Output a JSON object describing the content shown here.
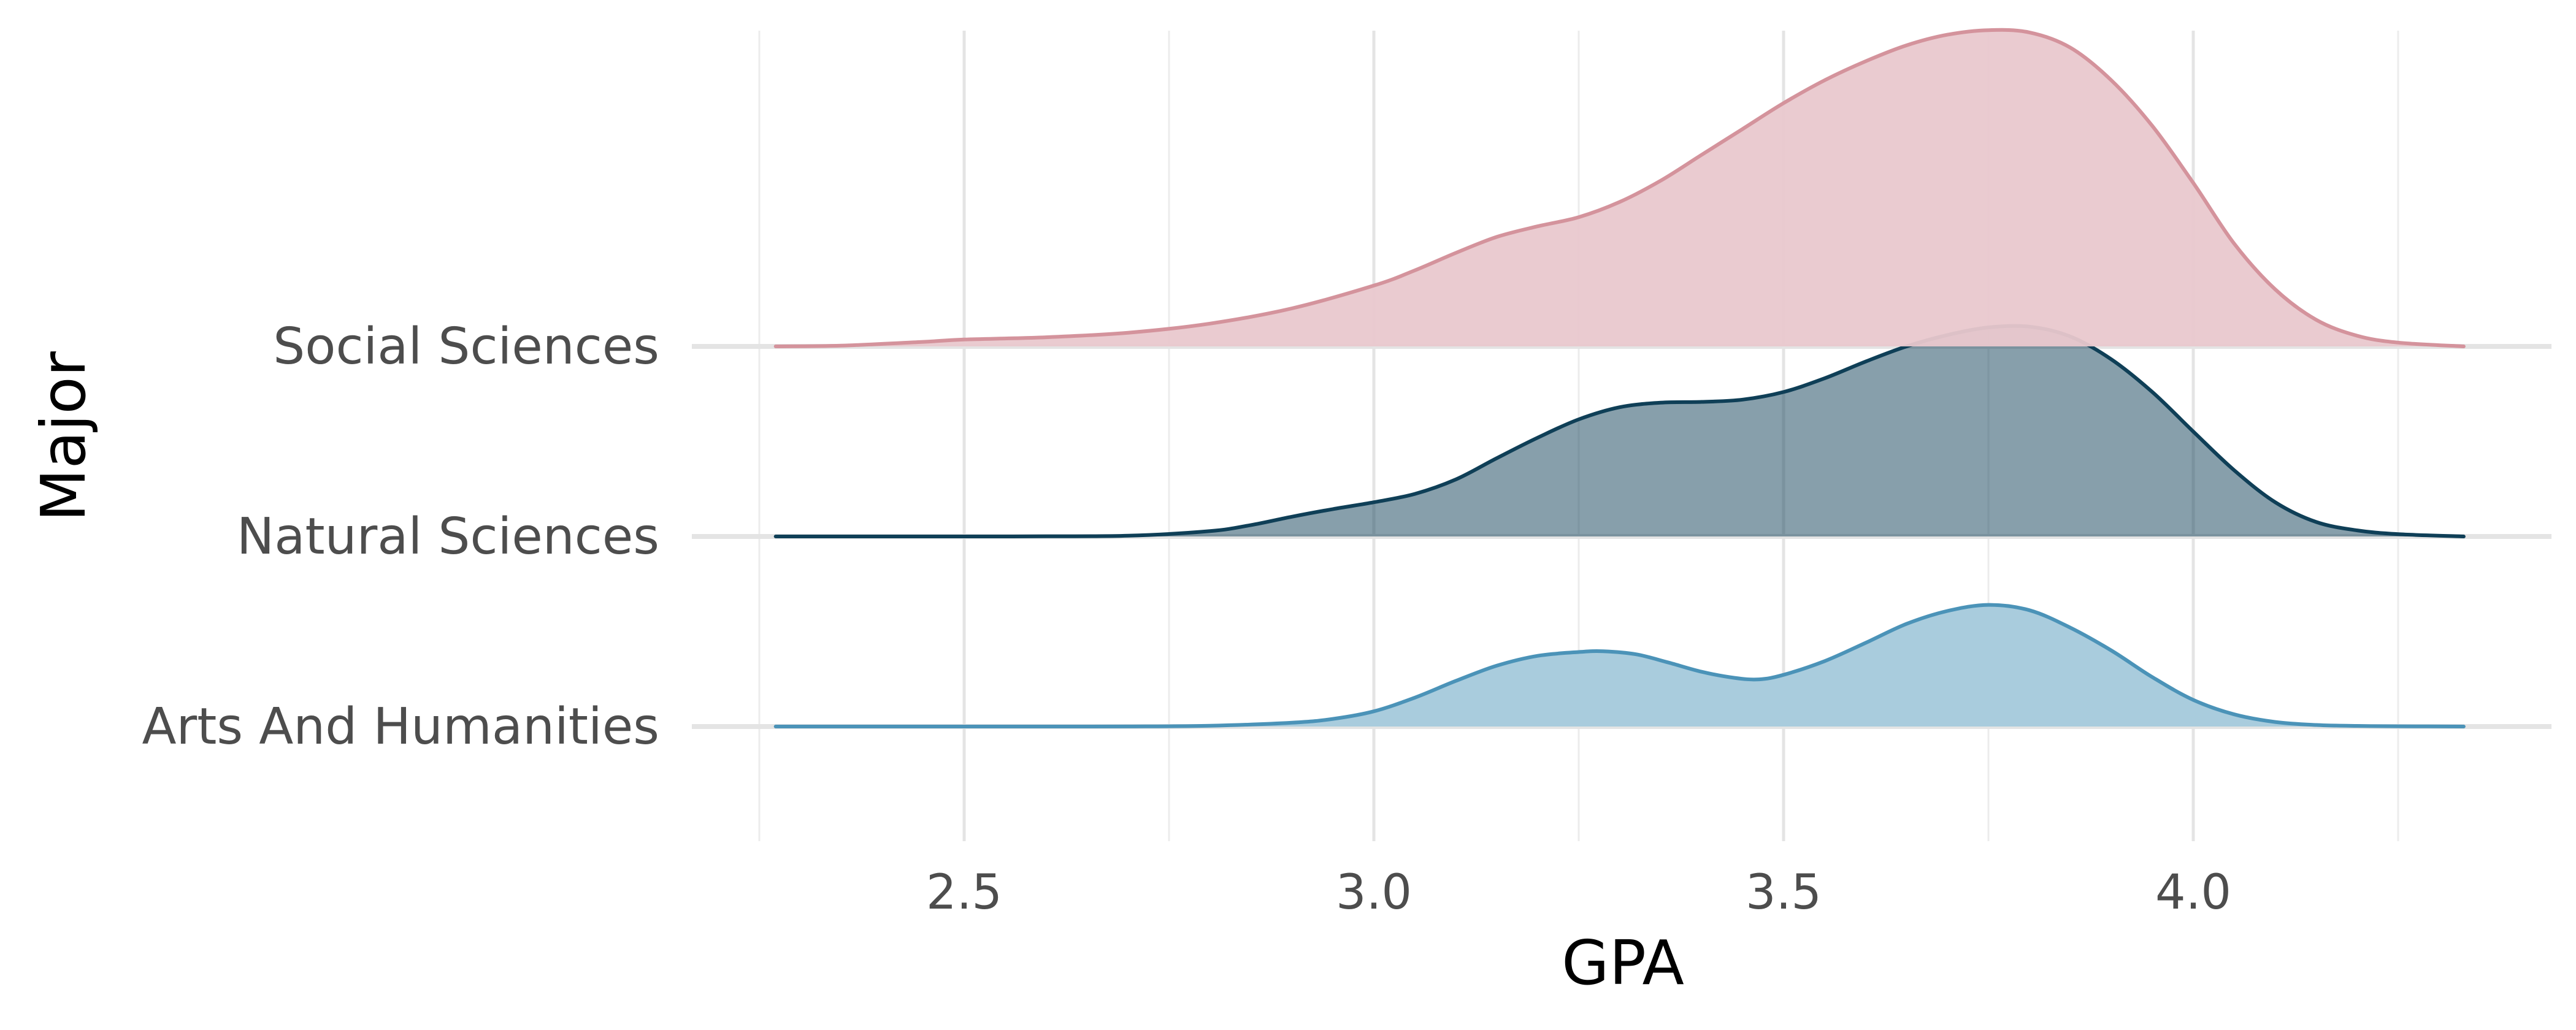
{
  "chart_data": {
    "type": "area",
    "subtype": "ridgeline",
    "title": "",
    "xlabel": "GPA",
    "ylabel": "Major",
    "xlim": [
      2.17,
      4.37
    ],
    "x_ticks": [
      2.5,
      3.0,
      3.5,
      4.0
    ],
    "x_tick_labels": [
      "2.5",
      "3.0",
      "3.5",
      "4.0"
    ],
    "x_minor_gridlines": [
      2.25,
      2.75,
      3.25,
      3.75,
      4.25
    ],
    "grid": true,
    "legend": "none",
    "categories": [
      "Arts And Humanities",
      "Natural Sciences",
      "Social Sciences"
    ],
    "series": [
      {
        "name": "Arts And Humanities",
        "color": "#4b93b8",
        "fill": "#a9ccdd",
        "fill_opacity": 1.0,
        "x": [
          2.27,
          2.4,
          2.5,
          2.6,
          2.7,
          2.8,
          2.9,
          2.95,
          3.0,
          3.05,
          3.1,
          3.15,
          3.2,
          3.25,
          3.28,
          3.32,
          3.36,
          3.4,
          3.44,
          3.47,
          3.5,
          3.55,
          3.6,
          3.65,
          3.7,
          3.75,
          3.8,
          3.85,
          3.9,
          3.95,
          4.0,
          4.05,
          4.1,
          4.15,
          4.2,
          4.25,
          4.33
        ],
        "y": [
          0.0,
          0.0,
          0.0,
          0.0,
          0.001,
          0.01,
          0.05,
          0.1,
          0.2,
          0.38,
          0.6,
          0.8,
          0.93,
          0.98,
          0.99,
          0.95,
          0.84,
          0.72,
          0.64,
          0.62,
          0.68,
          0.86,
          1.1,
          1.35,
          1.52,
          1.6,
          1.53,
          1.3,
          1.0,
          0.65,
          0.35,
          0.16,
          0.06,
          0.02,
          0.008,
          0.003,
          0.0
        ]
      },
      {
        "name": "Natural Sciences",
        "color": "#0f3f57",
        "fill": "#0f3f57",
        "fill_opacity": 0.5,
        "x": [
          2.27,
          2.4,
          2.5,
          2.6,
          2.7,
          2.8,
          2.85,
          2.9,
          2.95,
          3.0,
          3.05,
          3.1,
          3.15,
          3.2,
          3.25,
          3.3,
          3.35,
          3.4,
          3.45,
          3.5,
          3.55,
          3.6,
          3.65,
          3.7,
          3.75,
          3.8,
          3.85,
          3.9,
          3.95,
          4.0,
          4.05,
          4.1,
          4.15,
          4.2,
          4.25,
          4.33
        ],
        "y": [
          0.0,
          0.0,
          0.0,
          0.002,
          0.01,
          0.07,
          0.15,
          0.26,
          0.36,
          0.45,
          0.56,
          0.75,
          1.03,
          1.3,
          1.54,
          1.7,
          1.76,
          1.77,
          1.8,
          1.9,
          2.08,
          2.3,
          2.5,
          2.65,
          2.75,
          2.76,
          2.63,
          2.33,
          1.9,
          1.38,
          0.87,
          0.45,
          0.19,
          0.08,
          0.03,
          0.0
        ]
      },
      {
        "name": "Social Sciences",
        "color": "#d4939c",
        "fill": "#e9c8cd",
        "fill_opacity": 0.95,
        "x": [
          2.27,
          2.35,
          2.45,
          2.5,
          2.6,
          2.7,
          2.8,
          2.9,
          3.0,
          3.05,
          3.1,
          3.15,
          3.2,
          3.25,
          3.3,
          3.35,
          3.4,
          3.45,
          3.5,
          3.55,
          3.6,
          3.65,
          3.7,
          3.75,
          3.8,
          3.85,
          3.9,
          3.95,
          4.0,
          4.05,
          4.1,
          4.15,
          4.2,
          4.25,
          4.33
        ],
        "y": [
          0.0,
          0.01,
          0.06,
          0.09,
          0.12,
          0.18,
          0.3,
          0.5,
          0.8,
          1.0,
          1.23,
          1.44,
          1.58,
          1.7,
          1.9,
          2.18,
          2.52,
          2.86,
          3.2,
          3.5,
          3.75,
          3.96,
          4.1,
          4.16,
          4.13,
          3.93,
          3.5,
          2.9,
          2.15,
          1.35,
          0.75,
          0.35,
          0.14,
          0.05,
          0.0
        ]
      }
    ]
  }
}
